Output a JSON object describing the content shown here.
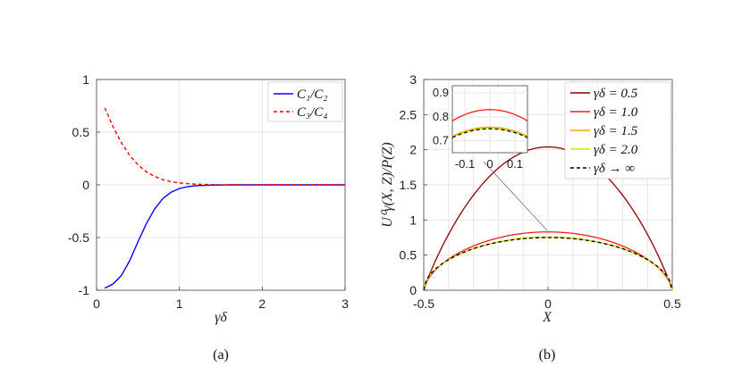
{
  "chart_data": [
    {
      "type": "line",
      "panel_label": "(a)",
      "xlabel": "γδ",
      "ylabel": "",
      "xlim": [
        0,
        3
      ],
      "ylim": [
        -1,
        1
      ],
      "xticks": [
        "0",
        "1",
        "2",
        "3"
      ],
      "yticks": [
        "1",
        "0.5",
        "0",
        "-0.5",
        "-1"
      ],
      "grid": true,
      "legend_position": "top-right",
      "series": [
        {
          "name": "C1/C2",
          "label": "C₁/C₂",
          "color": "#0000ff",
          "style": "solid",
          "x": [
            0.1,
            0.2,
            0.3,
            0.4,
            0.5,
            0.6,
            0.7,
            0.8,
            0.9,
            1.0,
            1.1,
            1.2,
            1.4,
            1.6,
            1.8,
            2.0,
            2.5,
            3.0
          ],
          "y": [
            -0.98,
            -0.94,
            -0.86,
            -0.72,
            -0.54,
            -0.37,
            -0.23,
            -0.13,
            -0.07,
            -0.035,
            -0.017,
            -0.008,
            -0.002,
            0.0,
            0.0,
            0.0,
            0.0,
            0.0
          ]
        },
        {
          "name": "C3/C4",
          "label": "C₃/C₄",
          "color": "#ff0000",
          "style": "dashed",
          "x": [
            0.1,
            0.2,
            0.3,
            0.4,
            0.5,
            0.6,
            0.7,
            0.8,
            0.9,
            1.0,
            1.2,
            1.4,
            1.6,
            1.8,
            2.0,
            2.5,
            3.0
          ],
          "y": [
            0.73,
            0.55,
            0.4,
            0.28,
            0.19,
            0.125,
            0.08,
            0.05,
            0.03,
            0.018,
            0.006,
            0.002,
            0.0,
            0.0,
            0.0,
            0.0,
            0.0
          ]
        }
      ]
    },
    {
      "type": "line",
      "panel_label": "(b)",
      "xlabel": "X",
      "ylabel": "U⁰γ(X, Z)/P(Z)",
      "xlim": [
        -0.5,
        0.5
      ],
      "ylim": [
        0,
        3
      ],
      "xticks": [
        "-0.5",
        "0",
        "0.5"
      ],
      "yticks": [
        "3",
        "2.5",
        "2",
        "1.5",
        "1",
        "0.5",
        "0"
      ],
      "grid": true,
      "legend_position": "top-right",
      "series": [
        {
          "name": "γδ = 0.5",
          "color": "#8b0000",
          "style": "solid",
          "peak": 2.04
        },
        {
          "name": "γδ = 1.0",
          "color": "#ff1a1a",
          "style": "solid",
          "peak": 0.83
        },
        {
          "name": "γδ = 1.5",
          "color": "#f2a900",
          "style": "solid",
          "peak": 0.757
        },
        {
          "name": "γδ = 2.0",
          "color": "#d4e600",
          "style": "solid",
          "peak": 0.752
        },
        {
          "name": "γδ → ∞",
          "color": "#000000",
          "style": "dashed",
          "peak": 0.75
        }
      ],
      "inset": {
        "xlim": [
          -0.15,
          0.15
        ],
        "ylim": [
          0.65,
          0.93
        ],
        "xticks": [
          "-0.1",
          "0",
          "0.1"
        ],
        "yticks": [
          "0.9",
          "0.8",
          "0.7"
        ]
      }
    }
  ]
}
